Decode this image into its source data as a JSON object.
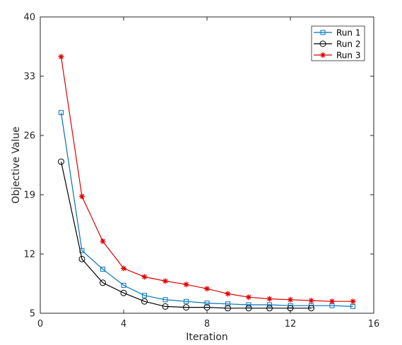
{
  "chart_data": {
    "type": "line",
    "title": "",
    "xlabel": "Iteration",
    "ylabel": "Objective Value",
    "xlim": [
      0,
      16
    ],
    "ylim": [
      5,
      40
    ],
    "xticks": [
      0,
      4,
      8,
      12,
      16
    ],
    "yticks": [
      5,
      12,
      19,
      26,
      33,
      40
    ],
    "grid": false,
    "legend_position": "top-right",
    "series": [
      {
        "name": "Run 1",
        "color": "#0072BD",
        "marker": "square",
        "x": [
          1,
          2,
          3,
          4,
          5,
          6,
          7,
          8,
          9,
          10,
          11,
          12,
          13,
          14,
          15
        ],
        "y": [
          28.7,
          12.4,
          10.2,
          8.3,
          7.1,
          6.6,
          6.4,
          6.2,
          6.1,
          6.0,
          6.0,
          5.9,
          5.9,
          5.9,
          5.8
        ]
      },
      {
        "name": "Run 2",
        "color": "#000000",
        "marker": "circle",
        "x": [
          1,
          2,
          3,
          4,
          5,
          6,
          7,
          8,
          9,
          10,
          11,
          12,
          13
        ],
        "y": [
          22.9,
          11.4,
          8.6,
          7.4,
          6.4,
          5.8,
          5.7,
          5.7,
          5.6,
          5.6,
          5.6,
          5.6,
          5.6
        ]
      },
      {
        "name": "Run 3",
        "color": "#E00000",
        "marker": "asterisk",
        "x": [
          1,
          2,
          3,
          4,
          5,
          6,
          7,
          8,
          9,
          10,
          11,
          12,
          13,
          14,
          15
        ],
        "y": [
          35.3,
          18.8,
          13.5,
          10.3,
          9.3,
          8.8,
          8.4,
          7.9,
          7.3,
          6.9,
          6.7,
          6.6,
          6.5,
          6.4,
          6.4
        ]
      }
    ]
  }
}
